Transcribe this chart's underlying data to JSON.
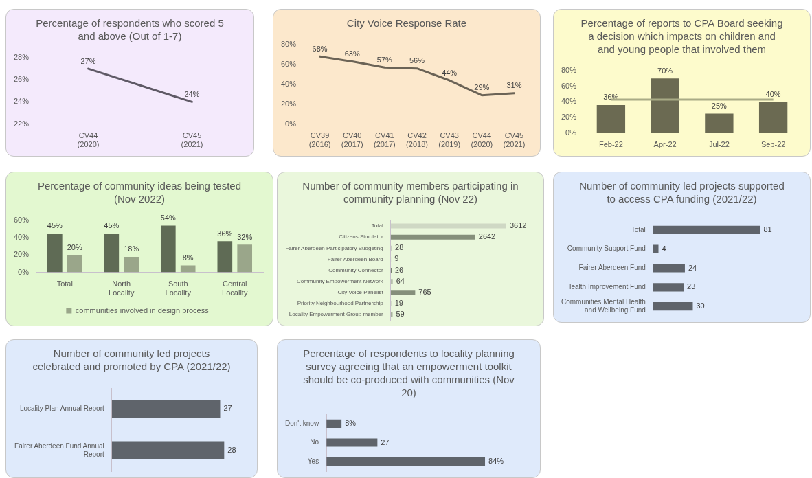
{
  "chart_data": [
    {
      "type": "line",
      "title": "Percentage of respondents who scored 5 and above (Out of 1-7)",
      "categories": [
        "CV44 (2020)",
        "CV45 (2021)"
      ],
      "series": [
        {
          "color": "#5f5a66",
          "values": [
            27,
            24
          ],
          "value_labels": [
            "27%",
            "24%"
          ]
        }
      ],
      "ylim": [
        22,
        28
      ],
      "yticks": [
        {
          "value": 22,
          "label": "22%"
        },
        {
          "value": 24,
          "label": "24%"
        },
        {
          "value": 26,
          "label": "26%"
        },
        {
          "value": 28,
          "label": "28%"
        }
      ]
    },
    {
      "type": "line",
      "title": "City Voice Response Rate",
      "categories": [
        "CV39 (2016)",
        "CV40 (2017)",
        "CV41 (2017)",
        "CV42 (2018)",
        "CV43 (2019)",
        "CV44 (2020)",
        "CV45 (2021)"
      ],
      "series": [
        {
          "color": "#6b6356",
          "values": [
            68,
            63,
            57,
            56,
            44,
            29,
            31
          ],
          "value_labels": [
            "68%",
            "63%",
            "57%",
            "56%",
            "44%",
            "29%",
            "31%"
          ]
        }
      ],
      "ylim": [
        0,
        80
      ],
      "yticks": [
        {
          "value": 0,
          "label": "0%"
        },
        {
          "value": 20,
          "label": "20%"
        },
        {
          "value": 40,
          "label": "40%"
        },
        {
          "value": 60,
          "label": "60%"
        },
        {
          "value": 80,
          "label": "80%"
        }
      ]
    },
    {
      "type": "bar",
      "title": "Percentage of reports to CPA Board seeking a decision which impacts on children and and young people that involved them",
      "categories": [
        "Feb-22",
        "Apr-22",
        "Jul-22",
        "Sep-22"
      ],
      "series": [
        {
          "color": "#6b6a52",
          "values": [
            36,
            70,
            25,
            40
          ],
          "value_labels": [
            "36%",
            "70%",
            "25%",
            "40%"
          ]
        }
      ],
      "ref_lines": [
        {
          "axis": "y",
          "value": 43,
          "color": "#a9ab86"
        }
      ],
      "ylim": [
        0,
        80
      ],
      "yticks": [
        {
          "value": 0,
          "label": "0%"
        },
        {
          "value": 20,
          "label": "20%"
        },
        {
          "value": 40,
          "label": "40%"
        },
        {
          "value": 60,
          "label": "60%"
        },
        {
          "value": 80,
          "label": "80%"
        }
      ]
    },
    {
      "type": "bar",
      "title": "Percentage of community ideas being tested (Nov 2022)",
      "categories": [
        "Total",
        "North Locality",
        "South Locality",
        "Central Locality"
      ],
      "series": [
        {
          "color": "#5f6b55",
          "values": [
            45,
            45,
            54,
            36
          ],
          "value_labels": [
            "45%",
            "45%",
            "54%",
            "36%"
          ]
        },
        {
          "name": "communities involved in design process",
          "color": "#9aa68a",
          "values": [
            20,
            18,
            8,
            32
          ],
          "value_labels": [
            "20%",
            "18%",
            "8%",
            "32%"
          ]
        }
      ],
      "legend": "bottom",
      "ylim": [
        0,
        60
      ],
      "yticks": [
        {
          "value": 0,
          "label": "0%"
        },
        {
          "value": 20,
          "label": "20%"
        },
        {
          "value": 40,
          "label": "40%"
        },
        {
          "value": 60,
          "label": "60%"
        }
      ]
    },
    {
      "type": "bar",
      "orientation": "horizontal",
      "title": "Number of community members participating in community planning (Nov 22)",
      "categories": [
        "Total",
        "Citizens Simulator",
        "Fairer Aberdeen Participatory Budgeting",
        "Fairer Aberdeen Board",
        "Community Connector",
        "Community Empowerment Network",
        "City Voice Panelist",
        "Priority Neighbourhood Partnership",
        "Locality Empowerment Group member"
      ],
      "values": [
        3612,
        2642,
        28,
        9,
        26,
        64,
        765,
        19,
        59
      ],
      "colors": [
        "#cfd8c4",
        "#858f7b",
        "#c8cfc0",
        "#c8cfc0",
        "#6f7866",
        "#b5bdac",
        "#858f7b",
        "#c8cfc0",
        "#a8b09e"
      ],
      "data_labels": true,
      "tick_labels": "y"
    },
    {
      "type": "bar",
      "orientation": "horizontal",
      "title": "Number of community led projects supported to access CPA funding (2021/22)",
      "categories": [
        "Total",
        "Community Support Fund",
        "Fairer Aberdeen Fund",
        "Health Improvement Fund",
        "Communities Mental Health and Wellbeing Fund"
      ],
      "values": [
        81,
        4,
        24,
        23,
        30
      ],
      "color": "#5f646b",
      "data_labels": true,
      "tick_labels": "y"
    },
    {
      "type": "bar",
      "orientation": "horizontal",
      "title": "Number of community led projects celebrated and promoted by CPA (2021/22)",
      "categories": [
        "Locality Plan Annual Report",
        "Fairer Aberdeen Fund Annual Report"
      ],
      "values": [
        27,
        28
      ],
      "color": "#5f646b",
      "data_labels": true,
      "tick_labels": "y"
    },
    {
      "type": "bar",
      "orientation": "horizontal",
      "title": "Percentage of respondents to locality planning survey agreeing that an empowerment toolkit should be co-produced with communities (Nov 20)",
      "categories": [
        "Don't know",
        "No",
        "Yes"
      ],
      "values": [
        8,
        27,
        84
      ],
      "value_labels": [
        "8%",
        "27",
        "84%"
      ],
      "color": "#5f646b",
      "tick_labels": "y"
    }
  ]
}
